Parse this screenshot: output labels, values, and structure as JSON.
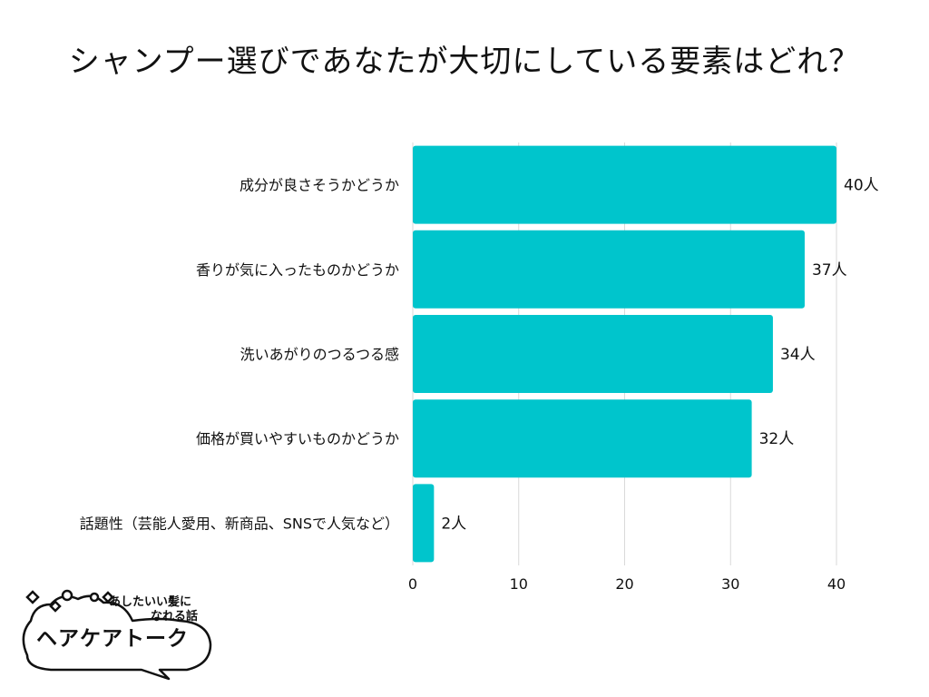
{
  "title": "シャンプー選びであなたが大切にしている要素はどれ？",
  "colors": {
    "bar": "#00C5CC",
    "grid": "#d9d9d9",
    "text": "#111111"
  },
  "chart_data": {
    "type": "bar",
    "orientation": "horizontal",
    "categories": [
      "成分が良さそうかどうか",
      "香りが気に入ったものかどうか",
      "洗いあがりのつるつる感",
      "価格が買いやすいものかどうか",
      "話題性（芸能人愛用、新商品、SNSで人気など）"
    ],
    "values": [
      40,
      37,
      34,
      32,
      2
    ],
    "data_labels": [
      "40人",
      "37人",
      "34人",
      "32人",
      "2人"
    ],
    "xticks": [
      "0",
      "10",
      "20",
      "30",
      "40"
    ],
    "xlim": [
      0,
      40
    ],
    "grid": true
  },
  "logo": {
    "line1": "あしたいい髪に",
    "line2": "なれる話",
    "main": "ヘアケアトーク"
  }
}
